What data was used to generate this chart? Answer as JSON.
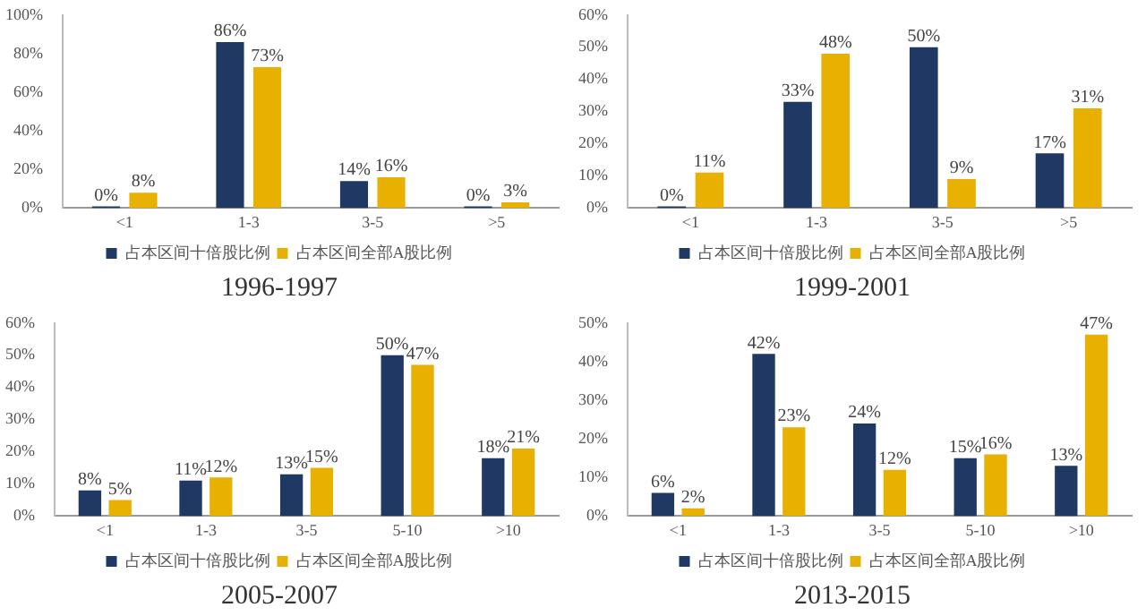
{
  "chart_data": [
    {
      "type": "bar",
      "title": "1996-1997",
      "categories": [
        "<1",
        "1-3",
        "3-5",
        ">5"
      ],
      "series": [
        {
          "name": "占本区间十倍股比例",
          "color": "#1f3864",
          "values": [
            0,
            86,
            14,
            0
          ],
          "value_labels": [
            "0%",
            "86%",
            "14%",
            "0%"
          ]
        },
        {
          "name": "占本区间全部A股比例",
          "color": "#e8b000",
          "values": [
            8,
            73,
            16,
            3
          ],
          "value_labels": [
            "8%",
            "73%",
            "16%",
            "3%"
          ]
        }
      ],
      "ylim": [
        0,
        100
      ],
      "yticks": [
        {
          "value": 0,
          "label": "0%"
        },
        {
          "value": 20,
          "label": "20%"
        },
        {
          "value": 40,
          "label": "40%"
        },
        {
          "value": 60,
          "label": "60%"
        },
        {
          "value": 80,
          "label": "80%"
        },
        {
          "value": 100,
          "label": "100%"
        }
      ],
      "grid": false,
      "legend": "bottom"
    },
    {
      "type": "bar",
      "title": "1999-2001",
      "categories": [
        "<1",
        "1-3",
        "3-5",
        ">5"
      ],
      "series": [
        {
          "name": "占本区间十倍股比例",
          "color": "#1f3864",
          "values": [
            0,
            33,
            50,
            17
          ],
          "value_labels": [
            "0%",
            "33%",
            "50%",
            "17%"
          ]
        },
        {
          "name": "占本区间全部A股比例",
          "color": "#e8b000",
          "values": [
            11,
            48,
            9,
            31
          ],
          "value_labels": [
            "11%",
            "48%",
            "9%",
            "31%"
          ]
        }
      ],
      "ylim": [
        0,
        60
      ],
      "yticks": [
        {
          "value": 0,
          "label": "0%"
        },
        {
          "value": 10,
          "label": "10%"
        },
        {
          "value": 20,
          "label": "20%"
        },
        {
          "value": 30,
          "label": "30%"
        },
        {
          "value": 40,
          "label": "40%"
        },
        {
          "value": 50,
          "label": "50%"
        },
        {
          "value": 60,
          "label": "60%"
        }
      ],
      "grid": false,
      "legend": "bottom"
    },
    {
      "type": "bar",
      "title": "2005-2007",
      "categories": [
        "<1",
        "1-3",
        "3-5",
        "5-10",
        ">10"
      ],
      "series": [
        {
          "name": "占本区间十倍股比例",
          "color": "#1f3864",
          "values": [
            8,
            11,
            13,
            50,
            18
          ],
          "value_labels": [
            "8%",
            "11%",
            "13%",
            "50%",
            "18%"
          ]
        },
        {
          "name": "占本区间全部A股比例",
          "color": "#e8b000",
          "values": [
            5,
            12,
            15,
            47,
            21
          ],
          "value_labels": [
            "5%",
            "12%",
            "15%",
            "47%",
            "21%"
          ]
        }
      ],
      "ylim": [
        0,
        60
      ],
      "yticks": [
        {
          "value": 0,
          "label": "0%"
        },
        {
          "value": 10,
          "label": "10%"
        },
        {
          "value": 20,
          "label": "20%"
        },
        {
          "value": 30,
          "label": "30%"
        },
        {
          "value": 40,
          "label": "40%"
        },
        {
          "value": 50,
          "label": "50%"
        },
        {
          "value": 60,
          "label": "60%"
        }
      ],
      "grid": false,
      "legend": "bottom"
    },
    {
      "type": "bar",
      "title": "2013-2015",
      "categories": [
        "<1",
        "1-3",
        "3-5",
        "5-10",
        ">10"
      ],
      "series": [
        {
          "name": "占本区间十倍股比例",
          "color": "#1f3864",
          "values": [
            6,
            42,
            24,
            15,
            13
          ],
          "value_labels": [
            "6%",
            "42%",
            "24%",
            "15%",
            "13%"
          ]
        },
        {
          "name": "占本区间全部A股比例",
          "color": "#e8b000",
          "values": [
            2,
            23,
            12,
            16,
            47
          ],
          "value_labels": [
            "2%",
            "23%",
            "12%",
            "16%",
            "47%"
          ]
        }
      ],
      "ylim": [
        0,
        50
      ],
      "yticks": [
        {
          "value": 0,
          "label": "0%"
        },
        {
          "value": 10,
          "label": "10%"
        },
        {
          "value": 20,
          "label": "20%"
        },
        {
          "value": 30,
          "label": "30%"
        },
        {
          "value": 40,
          "label": "40%"
        },
        {
          "value": 50,
          "label": "50%"
        }
      ],
      "grid": false,
      "legend": "bottom"
    }
  ]
}
